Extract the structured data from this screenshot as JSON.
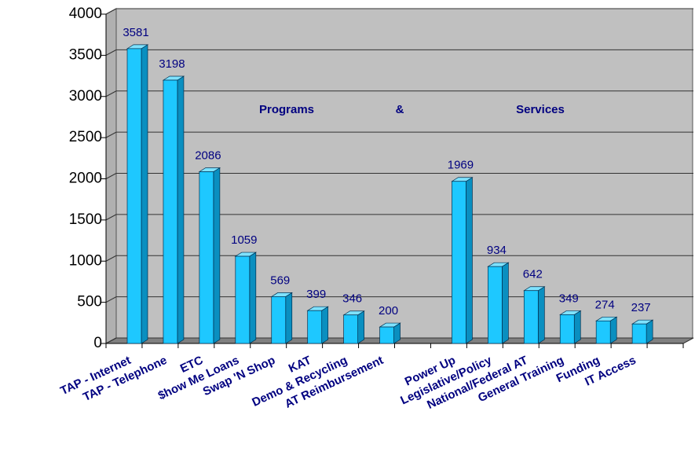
{
  "chart_data": {
    "type": "bar",
    "categories": [
      "TAP - Internet",
      "TAP - Telephone",
      "ETC",
      "$how Me Loans",
      "Swap 'N Shop",
      "KAT",
      "Demo & Recycling",
      "AT Reimbursement",
      null,
      "Power Up",
      "Legislative/Policy",
      "National/Federal AT",
      "General Training",
      "Funding",
      "IT Access",
      null
    ],
    "values": [
      3581,
      3198,
      2086,
      1059,
      569,
      399,
      346,
      200,
      null,
      1969,
      934,
      642,
      349,
      274,
      237,
      null
    ],
    "color": "#1ec8ff",
    "ylim": [
      0,
      4000
    ],
    "yticks": [
      0,
      500,
      1000,
      1500,
      2000,
      2500,
      3000,
      3500,
      4000
    ],
    "grid": true,
    "annotations": [
      "Programs",
      "&",
      "Services"
    ]
  }
}
